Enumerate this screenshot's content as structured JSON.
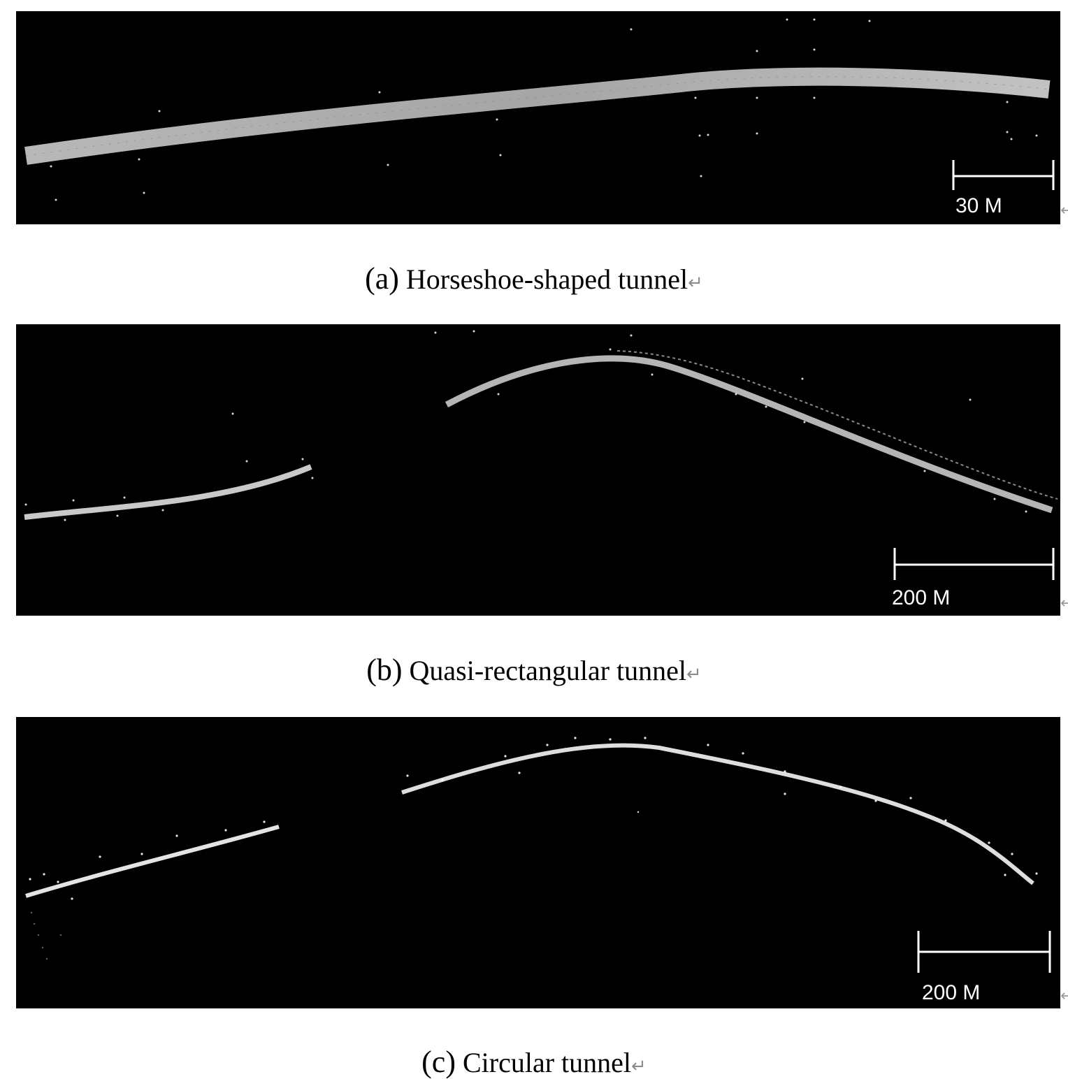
{
  "panels": [
    {
      "id": "a",
      "scale_bar": "30 M",
      "caption_letter": "(a)",
      "caption_text": "Horseshoe-shaped tunnel",
      "return_symbol": "↵"
    },
    {
      "id": "b",
      "scale_bar": "200 M",
      "caption_letter": "(b)",
      "caption_text": "Quasi-rectangular tunnel",
      "return_symbol": "↵"
    },
    {
      "id": "c",
      "scale_bar": "200 M",
      "caption_letter": "(c)",
      "caption_text": "Circular tunnel",
      "return_symbol": "↵"
    }
  ],
  "colors": {
    "background": "#000000",
    "point_cloud": "#cfcfcf",
    "scale_bar": "#ffffff"
  }
}
